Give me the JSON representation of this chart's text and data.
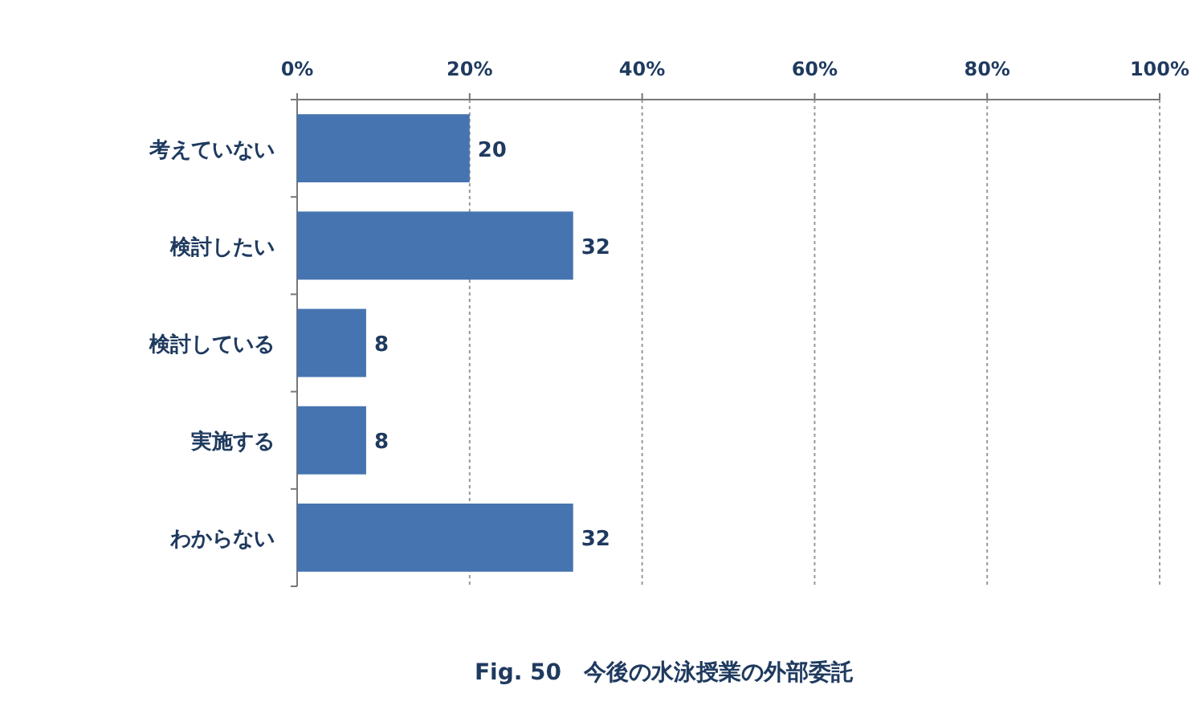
{
  "chart_data": {
    "type": "bar",
    "orientation": "horizontal",
    "title": "Fig. 50　今後の水泳授業の外部委託",
    "categories": [
      "考えていない",
      "検討したい",
      "検討している",
      "実施する",
      "わからない"
    ],
    "values": [
      20,
      32,
      8,
      8,
      32
    ],
    "color": "#4674b0",
    "xlim": [
      0,
      100
    ],
    "xticks": [
      {
        "value": 0,
        "label": "0%"
      },
      {
        "value": 20,
        "label": "20%"
      },
      {
        "value": 40,
        "label": "40%"
      },
      {
        "value": 60,
        "label": "60%"
      },
      {
        "value": 80,
        "label": "80%"
      },
      {
        "value": 100,
        "label": "100%"
      }
    ],
    "grid": "x",
    "data_labels": true
  }
}
